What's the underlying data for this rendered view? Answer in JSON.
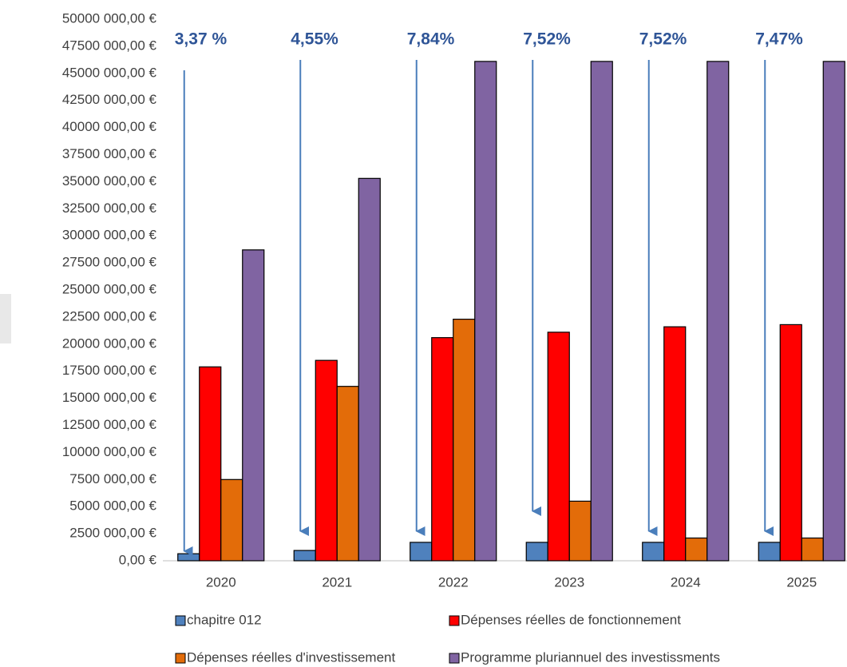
{
  "chart_data": {
    "type": "bar",
    "categories": [
      "2020",
      "2021",
      "2022",
      "2023",
      "2024",
      "2025"
    ],
    "series": [
      {
        "name": "chapitre 012",
        "color": "#4f81bd",
        "values": [
          650000,
          950000,
          1700000,
          1700000,
          1700000,
          1700000
        ]
      },
      {
        "name": "Dépenses réelles de fonctionnement",
        "color": "#ff0000",
        "values": [
          17900000,
          18500000,
          20600000,
          21100000,
          21600000,
          21800000
        ]
      },
      {
        "name": "Dépenses réelles d'investissement",
        "color": "#e36c09",
        "values": [
          7500000,
          16100000,
          22300000,
          5500000,
          2100000,
          2100000
        ]
      },
      {
        "name": "Programme pluriannuel des investissments",
        "color": "#8064a2",
        "values": [
          28700000,
          35300000,
          46100000,
          46100000,
          46100000,
          46100000
        ]
      }
    ],
    "annotations": [
      "3,37 %",
      "4,55%",
      "7,84%",
      "7,52%",
      "7,52%",
      "7,47%"
    ],
    "ylim": [
      0,
      50000000
    ],
    "yticks": [
      {
        "value": 0,
        "label": "0,00 €"
      },
      {
        "value": 2500000,
        "label": "2500 000,00 €"
      },
      {
        "value": 5000000,
        "label": "5000 000,00 €"
      },
      {
        "value": 7500000,
        "label": "7500 000,00 €"
      },
      {
        "value": 10000000,
        "label": "10000 000,00 €"
      },
      {
        "value": 12500000,
        "label": "12500 000,00 €"
      },
      {
        "value": 15000000,
        "label": "15000 000,00 €"
      },
      {
        "value": 17500000,
        "label": "17500 000,00 €"
      },
      {
        "value": 20000000,
        "label": "20000 000,00 €"
      },
      {
        "value": 22500000,
        "label": "22500 000,00 €"
      },
      {
        "value": 25000000,
        "label": "25000 000,00 €"
      },
      {
        "value": 27500000,
        "label": "27500 000,00 €"
      },
      {
        "value": 30000000,
        "label": "30000 000,00 €"
      },
      {
        "value": 32500000,
        "label": "32500 000,00 €"
      },
      {
        "value": 35000000,
        "label": "35000 000,00 €"
      },
      {
        "value": 37500000,
        "label": "37500 000,00 €"
      },
      {
        "value": 40000000,
        "label": "40000 000,00 €"
      },
      {
        "value": 42500000,
        "label": "42500 000,00 €"
      },
      {
        "value": 45000000,
        "label": "45000 000,00 €"
      },
      {
        "value": 47500000,
        "label": "47500 000,00 €"
      },
      {
        "value": 50000000,
        "label": "50000 000,00 €"
      }
    ],
    "grid": false
  }
}
